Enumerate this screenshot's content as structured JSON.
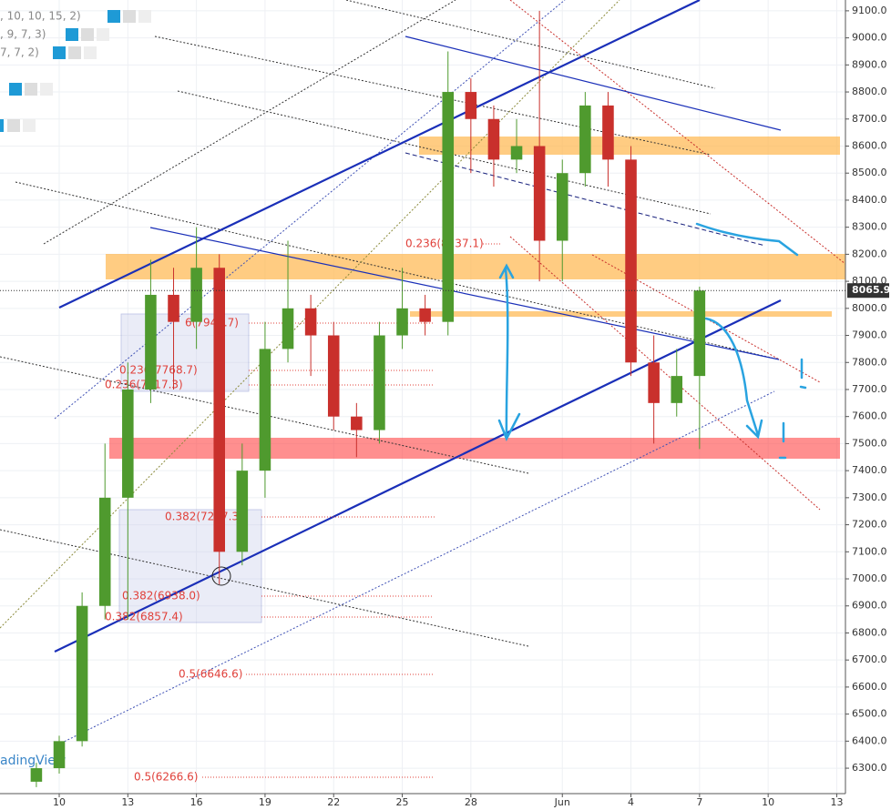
{
  "chart_data": {
    "type": "candlestick",
    "x": [
      -1,
      0,
      1,
      2,
      3,
      4,
      5,
      6,
      7,
      8,
      9,
      10,
      11,
      12,
      13,
      14,
      15,
      16,
      17,
      18,
      19,
      20,
      21,
      22,
      23,
      24,
      25,
      26,
      27,
      28
    ],
    "open": [
      6250,
      6300,
      6400,
      6900,
      7300,
      7700,
      8050,
      7950,
      8150,
      7100,
      7400,
      7850,
      8000,
      7900,
      7600,
      7550,
      7900,
      8000,
      7950,
      8800,
      8700,
      8550,
      8600,
      8250,
      8500,
      8750,
      8550,
      7800,
      7650,
      7750
    ],
    "high": [
      6320,
      6420,
      6950,
      7500,
      7800,
      8180,
      8150,
      8300,
      8200,
      7500,
      7950,
      8250,
      8050,
      7950,
      7650,
      7950,
      8150,
      8050,
      8950,
      8850,
      8750,
      8700,
      9100,
      8550,
      8800,
      8800,
      8600,
      7900,
      7850,
      8080
    ],
    "low": [
      6230,
      6280,
      6380,
      6850,
      6850,
      7650,
      7700,
      7850,
      6980,
      7050,
      7300,
      7800,
      7750,
      7550,
      7450,
      7500,
      7850,
      7900,
      7900,
      8500,
      8450,
      8500,
      8100,
      8100,
      8450,
      8450,
      7750,
      7500,
      7600,
      7480
    ],
    "close": [
      6300,
      6400,
      6900,
      7300,
      7700,
      8050,
      7950,
      8150,
      7100,
      7400,
      7850,
      8000,
      7900,
      7600,
      7550,
      7900,
      8000,
      7950,
      8800,
      8700,
      8550,
      8600,
      8250,
      8500,
      8750,
      8550,
      7800,
      7650,
      7750,
      8065.9
    ],
    "up_color": "#4f9a2e",
    "down_color": "#c9302c",
    "last_price": 8065.9,
    "xlim": [
      -2.59,
      34.38
    ],
    "ylim": [
      6206,
      9140
    ],
    "xticks": [
      {
        "value": 0,
        "label": "10"
      },
      {
        "value": 3,
        "label": "13"
      },
      {
        "value": 6,
        "label": "16"
      },
      {
        "value": 9,
        "label": "19"
      },
      {
        "value": 12,
        "label": "22"
      },
      {
        "value": 15,
        "label": "25"
      },
      {
        "value": 18,
        "label": "28"
      },
      {
        "value": 22,
        "label": "Jun"
      },
      {
        "value": 25,
        "label": "4"
      },
      {
        "value": 28,
        "label": "7"
      },
      {
        "value": 31,
        "label": "10"
      },
      {
        "value": 34,
        "label": "13"
      }
    ],
    "yticks": [
      {
        "value": 6300,
        "label": "6300.0"
      },
      {
        "value": 6400,
        "label": "6400.0"
      },
      {
        "value": 6500,
        "label": "6500.0"
      },
      {
        "value": 6600,
        "label": "6600.0"
      },
      {
        "value": 6700,
        "label": "6700.0"
      },
      {
        "value": 6800,
        "label": "6800.0"
      },
      {
        "value": 6900,
        "label": "6900.0"
      },
      {
        "value": 7000,
        "label": "7000.0"
      },
      {
        "value": 7100,
        "label": "7100.0"
      },
      {
        "value": 7200,
        "label": "7200.0"
      },
      {
        "value": 7300,
        "label": "7300.0"
      },
      {
        "value": 7400,
        "label": "7400.0"
      },
      {
        "value": 7500,
        "label": "7500.0"
      },
      {
        "value": 7600,
        "label": "7600.0"
      },
      {
        "value": 7700,
        "label": "7700.0"
      },
      {
        "value": 7800,
        "label": "7800.0"
      },
      {
        "value": 7900,
        "label": "7900.0"
      },
      {
        "value": 8000,
        "label": "8000.0"
      },
      {
        "value": 8100,
        "label": "8100.0"
      },
      {
        "value": 8200,
        "label": "8200.0"
      },
      {
        "value": 8300,
        "label": "8300.0"
      },
      {
        "value": 8400,
        "label": "8400.0"
      },
      {
        "value": 8500,
        "label": "8500.0"
      },
      {
        "value": 8600,
        "label": "8600.0"
      },
      {
        "value": 8700,
        "label": "8700.0"
      },
      {
        "value": 8800,
        "label": "8800.0"
      },
      {
        "value": 8900,
        "label": "8900.0"
      },
      {
        "value": 9000,
        "label": "9000.0"
      },
      {
        "value": 9100,
        "label": "9100.0"
      }
    ],
    "grid": true,
    "indicators": [
      ", 10, 10, 15, 2)",
      ", 9, 7, 3)",
      "7, 7, 2)"
    ],
    "watermark": "adingView",
    "annotations": [
      "0.236(8237.1)",
      "6(7944.7)",
      "0.236(7768.7)",
      "0.236(7717.3)",
      "0.382(7227.3)",
      "0.382(6938.0)",
      "0.382(6857.4)",
      "0.5(6646.6)",
      "0.5(6266.6)"
    ]
  }
}
